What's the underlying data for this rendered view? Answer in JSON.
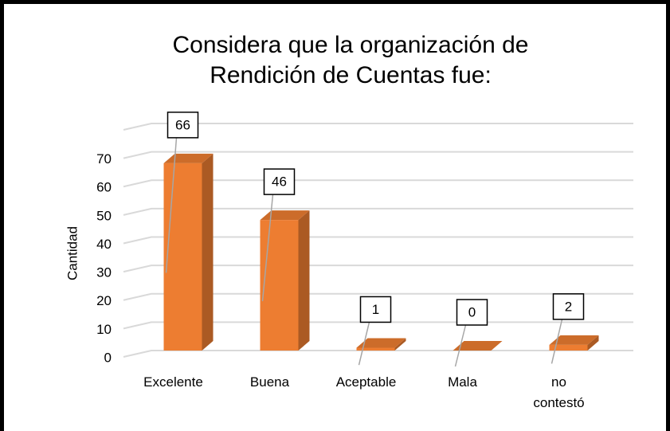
{
  "chart_data": {
    "type": "bar3d",
    "title": "Considera que la organización de Rendición de Cuentas fue:",
    "y_label": "Cantidad",
    "categories": [
      "Excelente",
      "Buena",
      "Aceptable",
      "Mala",
      "no contestó"
    ],
    "values": [
      66,
      46,
      1,
      0,
      2
    ],
    "color": "#ed7d31",
    "ylim": [
      0,
      80
    ],
    "yticks": [
      0,
      10,
      20,
      30,
      40,
      50,
      60,
      70
    ],
    "grid": true
  }
}
